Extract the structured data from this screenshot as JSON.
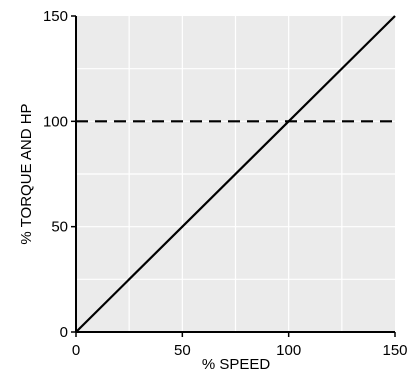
{
  "chart_data": {
    "type": "line",
    "xlabel": "% SPEED",
    "ylabel": "% TORQUE AND HP",
    "xlim": [
      0,
      150
    ],
    "ylim": [
      0,
      150
    ],
    "x_ticks": [
      0,
      50,
      100,
      150
    ],
    "y_ticks": [
      0,
      50,
      100,
      150
    ],
    "x_tick_labels": [
      "0",
      "50",
      "100",
      "150"
    ],
    "y_tick_labels": [
      "0",
      "50",
      "100",
      "150"
    ],
    "minor_grid_step": 25,
    "grid": true,
    "series": [
      {
        "style": "solid",
        "color": "#000000",
        "x": [
          0,
          150
        ],
        "y": [
          0,
          150
        ]
      },
      {
        "style": "dashed",
        "color": "#000000",
        "x": [
          0,
          150
        ],
        "y": [
          100,
          100
        ]
      }
    ]
  },
  "colors": {
    "plot_background": "#ebebeb",
    "grid": "#ffffff",
    "axis": "#000000"
  }
}
